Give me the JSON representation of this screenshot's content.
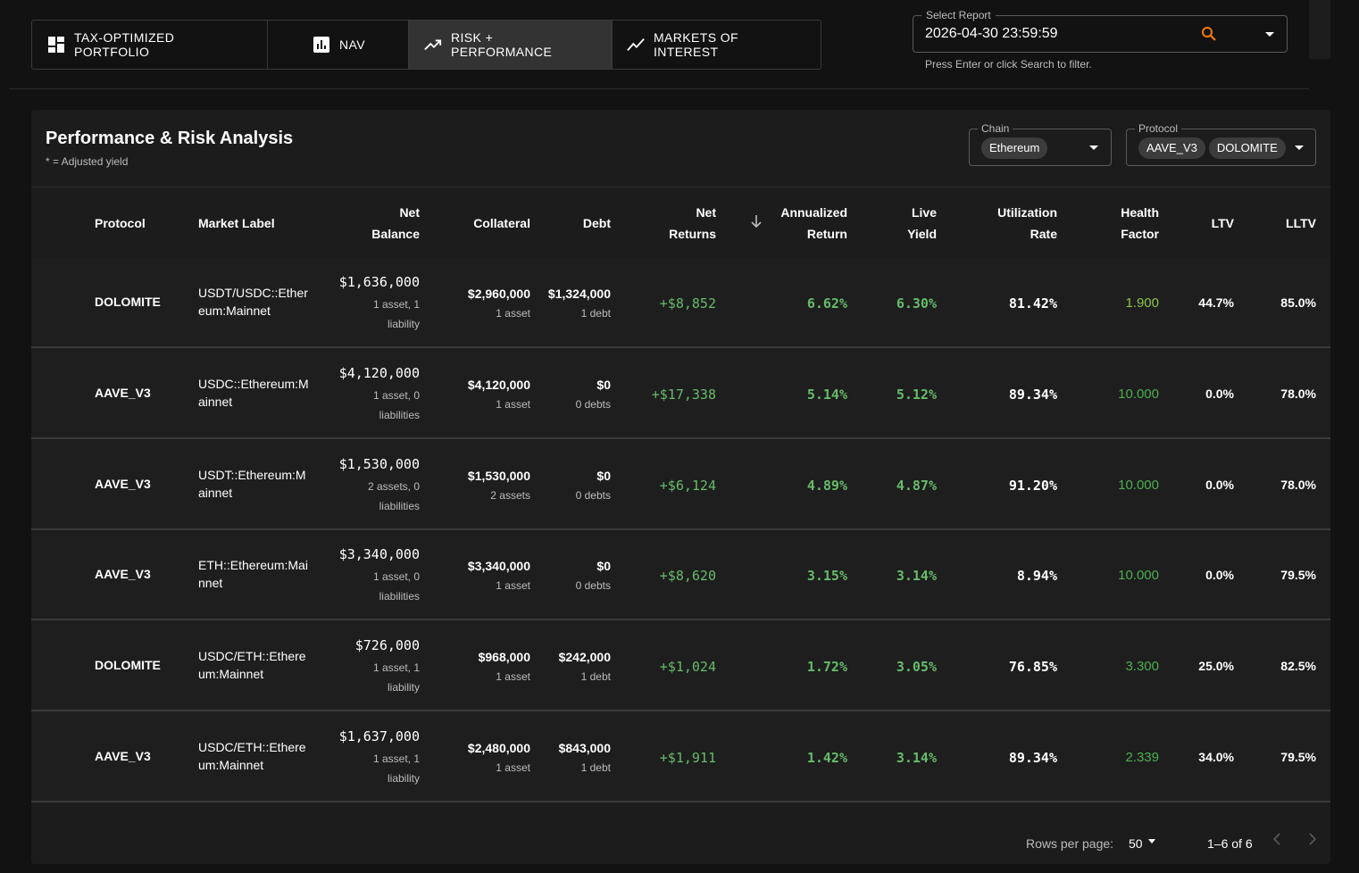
{
  "nav": {
    "tabs": [
      {
        "label": "TAX-OPTIMIZED PORTFOLIO",
        "icon": "dashboard-icon"
      },
      {
        "label": "NAV",
        "icon": "bar-chart-icon"
      },
      {
        "label": "RISK + PERFORMANCE",
        "icon": "trending-up-icon",
        "active": true
      },
      {
        "label": "MARKETS OF INTEREST",
        "icon": "show-chart-icon"
      }
    ]
  },
  "report": {
    "legend": "Select Report",
    "value": "2026-04-30 23:59:59",
    "helper": "Press Enter or click Search to filter."
  },
  "panel": {
    "title": "Performance & Risk Analysis",
    "subtitle": "* = Adjusted yield",
    "chain": {
      "legend": "Chain",
      "chips": [
        "Ethereum"
      ]
    },
    "protocol": {
      "legend": "Protocol",
      "chips": [
        "AAVE_V3",
        "DOLOMITE"
      ]
    }
  },
  "table": {
    "headers": {
      "protocol": "Protocol",
      "market_label": "Market Label",
      "net_balance_1": "Net",
      "net_balance_2": "Balance",
      "collateral": "Collateral",
      "debt": "Debt",
      "net_returns_1": "Net",
      "net_returns_2": "Returns",
      "annualized_1": "Annualized",
      "annualized_2": "Return",
      "live_1": "Live",
      "live_2": "Yield",
      "util_1": "Utilization",
      "util_2": "Rate",
      "health_1": "Health",
      "health_2": "Factor",
      "ltv": "LTV",
      "lltv": "LLTV"
    },
    "rows": [
      {
        "protocol": "DOLOMITE",
        "label": "USDT/USDC::Ethereum:Mainnet",
        "net_balance": "$1,636,000",
        "net_balance_sub": "1 asset, 1 liability",
        "collateral": "$2,960,000",
        "collateral_sub": "1 asset",
        "debt": "$1,324,000",
        "debt_sub": "1 debt",
        "net_returns": "+$8,852",
        "annualized": "6.62%",
        "live_yield": "6.30%",
        "utilization": "81.42%",
        "health": "1.900",
        "health_color": "#8bc34a",
        "ltv": "44.7%",
        "lltv": "85.0%"
      },
      {
        "protocol": "AAVE_V3",
        "label": "USDC::Ethereum:Mainnet",
        "net_balance": "$4,120,000",
        "net_balance_sub": "1 asset, 0 liabilities",
        "collateral": "$4,120,000",
        "collateral_sub": "1 asset",
        "debt": "$0",
        "debt_sub": "0 debts",
        "net_returns": "+$17,338",
        "annualized": "5.14%",
        "live_yield": "5.12%",
        "utilization": "89.34%",
        "health": "10.000",
        "health_color": "#4caf50",
        "ltv": "0.0%",
        "lltv": "78.0%"
      },
      {
        "protocol": "AAVE_V3",
        "label": "USDT::Ethereum:Mainnet",
        "net_balance": "$1,530,000",
        "net_balance_sub": "2 assets, 0 liabilities",
        "collateral": "$1,530,000",
        "collateral_sub": "2 assets",
        "debt": "$0",
        "debt_sub": "0 debts",
        "net_returns": "+$6,124",
        "annualized": "4.89%",
        "live_yield": "4.87%",
        "utilization": "91.20%",
        "health": "10.000",
        "health_color": "#4caf50",
        "ltv": "0.0%",
        "lltv": "78.0%"
      },
      {
        "protocol": "AAVE_V3",
        "label": "ETH::Ethereum:Mainnet",
        "net_balance": "$3,340,000",
        "net_balance_sub": "1 asset, 0 liabilities",
        "collateral": "$3,340,000",
        "collateral_sub": "1 asset",
        "debt": "$0",
        "debt_sub": "0 debts",
        "net_returns": "+$8,620",
        "annualized": "3.15%",
        "live_yield": "3.14%",
        "utilization": "8.94%",
        "health": "10.000",
        "health_color": "#4caf50",
        "ltv": "0.0%",
        "lltv": "79.5%"
      },
      {
        "protocol": "DOLOMITE",
        "label": "USDC/ETH::Ethereum:Mainnet",
        "net_balance": "$726,000",
        "net_balance_sub": "1 asset, 1 liability",
        "collateral": "$968,000",
        "collateral_sub": "1 asset",
        "debt": "$242,000",
        "debt_sub": "1 debt",
        "net_returns": "+$1,024",
        "annualized": "1.72%",
        "live_yield": "3.05%",
        "utilization": "76.85%",
        "health": "3.300",
        "health_color": "#4caf50",
        "ltv": "25.0%",
        "lltv": "82.5%"
      },
      {
        "protocol": "AAVE_V3",
        "label": "USDC/ETH::Ethereum:Mainnet",
        "net_balance": "$1,637,000",
        "net_balance_sub": "1 asset, 1 liability",
        "collateral": "$2,480,000",
        "collateral_sub": "1 asset",
        "debt": "$843,000",
        "debt_sub": "1 debt",
        "net_returns": "+$1,911",
        "annualized": "1.42%",
        "live_yield": "3.14%",
        "utilization": "89.34%",
        "health": "2.339",
        "health_color": "#4caf50",
        "ltv": "34.0%",
        "lltv": "79.5%"
      }
    ]
  },
  "pagination": {
    "rows_per_page_label": "Rows per page:",
    "rows_per_page": "50",
    "range": "1–6 of 6"
  },
  "colors": {
    "positive": "#66bb6a",
    "search_icon": "#f57c00"
  }
}
